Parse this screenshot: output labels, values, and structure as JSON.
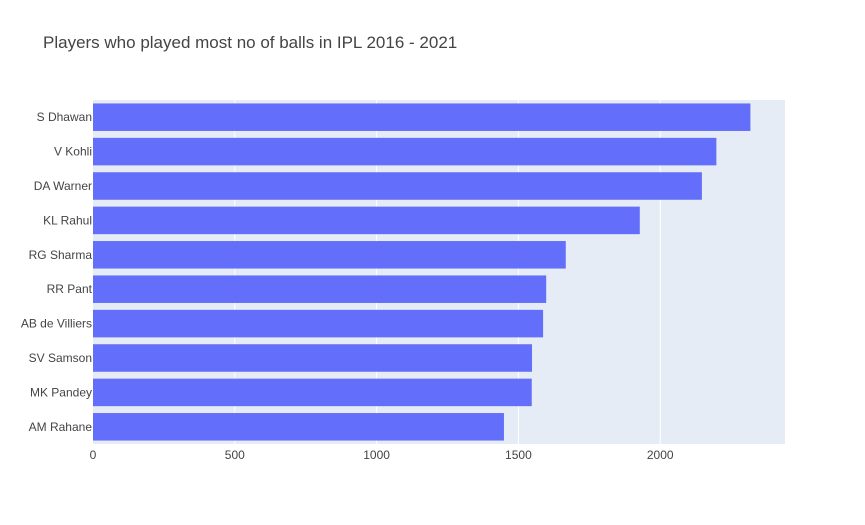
{
  "chart_data": {
    "type": "bar",
    "orientation": "horizontal",
    "title": "Players who played most no of balls in IPL 2016 - 2021",
    "xlabel": "",
    "ylabel": "",
    "categories": [
      "S Dhawan",
      "V Kohli",
      "DA Warner",
      "KL Rahul",
      "RG Sharma",
      "RR Pant",
      "AB de Villiers",
      "SV Samson",
      "MK Pandey",
      "AM Rahane"
    ],
    "values": [
      2318,
      2198,
      2147,
      1928,
      1667,
      1598,
      1587,
      1548,
      1547,
      1449
    ],
    "xlim": [
      0,
      2440
    ],
    "xticks": [
      0,
      500,
      1000,
      1500,
      2000
    ],
    "xtick_labels": [
      "0",
      "500",
      "1000",
      "1500",
      "2000"
    ],
    "grid": true,
    "colors": {
      "bar": "#636efa",
      "plot_bg": "#e5ecf6",
      "grid": "#ffffff",
      "text": "#444444"
    }
  }
}
